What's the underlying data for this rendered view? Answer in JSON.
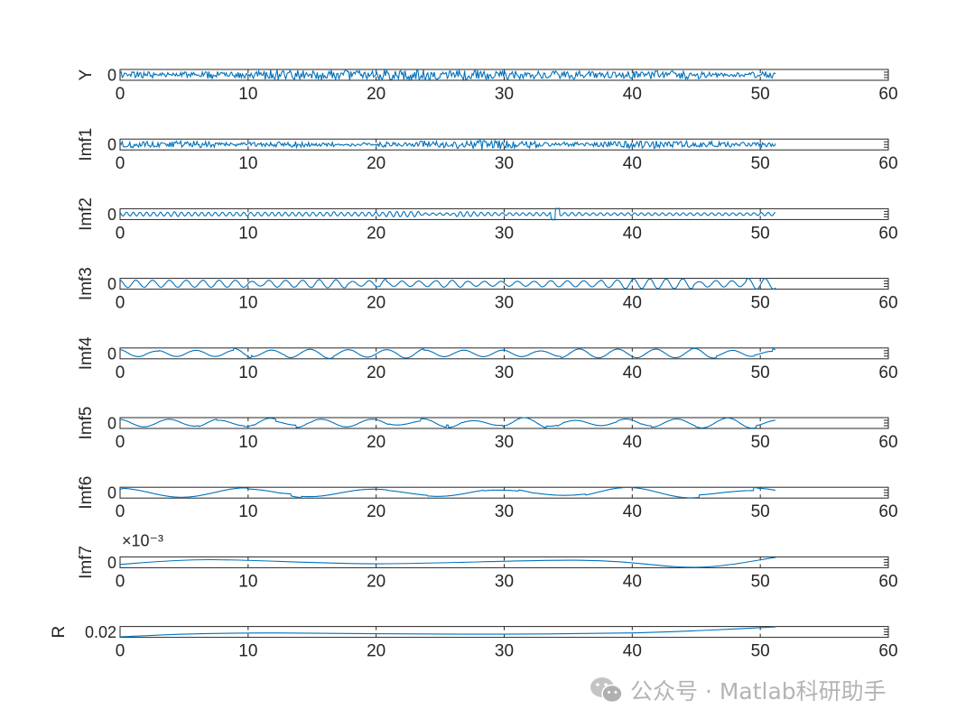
{
  "chart_data": [
    {
      "type": "line",
      "ylabel": "Y",
      "yticks": [
        "0"
      ],
      "xlim": [
        0,
        60
      ],
      "xticks": [
        0,
        10,
        20,
        30,
        40,
        50,
        60
      ],
      "color": "#0072bd",
      "series": [
        {
          "x": [
            0,
            51.2
          ],
          "y": "dense oscillation about 0, amplitude approx. equal to axis half-height"
        }
      ]
    },
    {
      "type": "line",
      "ylabel": "Imf1",
      "yticks": [
        "0"
      ],
      "xlim": [
        0,
        60
      ],
      "xticks": [
        0,
        10,
        20,
        30,
        40,
        50,
        60
      ],
      "color": "#0072bd",
      "series": [
        {
          "x": [
            0,
            51.2
          ],
          "y": "dense high-frequency oscillation about 0, very similar to Y"
        }
      ]
    },
    {
      "type": "line",
      "ylabel": "Imf2",
      "yticks": [
        "0"
      ],
      "xlim": [
        0,
        60
      ],
      "xticks": [
        0,
        10,
        20,
        30,
        40,
        50,
        60
      ],
      "color": "#0072bd",
      "series": [
        {
          "x": [
            0,
            51.2
          ],
          "y": "high-frequency oscillation about 0, spike near x=34"
        }
      ]
    },
    {
      "type": "line",
      "ylabel": "Imf3",
      "yticks": [
        "0"
      ],
      "xlim": [
        0,
        60
      ],
      "xticks": [
        0,
        10,
        20,
        30,
        40,
        50,
        60
      ],
      "color": "#0072bd",
      "series": [
        {
          "x": [
            0,
            51.2
          ],
          "y": "oscillation about 0, period approx. 1.3"
        }
      ]
    },
    {
      "type": "line",
      "ylabel": "Imf4",
      "yticks": [
        "0"
      ],
      "xlim": [
        0,
        60
      ],
      "xticks": [
        0,
        10,
        20,
        30,
        40,
        50,
        60
      ],
      "color": "#0072bd",
      "series": [
        {
          "x": [
            0,
            51.2
          ],
          "y": "oscillation about 0, period approx. 3"
        }
      ]
    },
    {
      "type": "line",
      "ylabel": "Imf5",
      "yticks": [
        "0"
      ],
      "xlim": [
        0,
        60
      ],
      "xticks": [
        0,
        10,
        20,
        30,
        40,
        50,
        60
      ],
      "color": "#0072bd",
      "series": [
        {
          "x": [
            0,
            51.2
          ],
          "y": "oscillation about 0, period approx. 4"
        }
      ]
    },
    {
      "type": "line",
      "ylabel": "Imf6",
      "yticks": [
        "0"
      ],
      "xlim": [
        0,
        60
      ],
      "xticks": [
        0,
        10,
        20,
        30,
        40,
        50,
        60
      ],
      "color": "#0072bd",
      "series": [
        {
          "x": [
            0,
            51.2
          ],
          "y": "slow oscillation about 0, period approx. 10"
        }
      ]
    },
    {
      "type": "line",
      "ylabel": "Imf7",
      "yticks": [
        "0"
      ],
      "exponent": "×10⁻³",
      "xlim": [
        0,
        60
      ],
      "xticks": [
        0,
        10,
        20,
        30,
        40,
        50,
        60
      ],
      "color": "#0072bd",
      "series": [
        {
          "x": [
            0,
            7,
            20,
            36,
            45,
            51.2
          ],
          "y": [
            -0.3,
            0.5,
            -0.2,
            0.4,
            -0.8,
            0.9
          ]
        }
      ]
    },
    {
      "type": "line",
      "ylabel": "R",
      "yticks": [
        "0.02"
      ],
      "xlim": [
        0,
        60
      ],
      "xticks": [
        0,
        10,
        20,
        30,
        40,
        50,
        60
      ],
      "color": "#0072bd",
      "series": [
        {
          "x": [
            0,
            5,
            12,
            20,
            30,
            40,
            46,
            51.2
          ],
          "y": [
            0.0185,
            0.0192,
            0.0195,
            0.0193,
            0.0192,
            0.0195,
            0.0202,
            0.021
          ]
        }
      ]
    }
  ],
  "watermark": {
    "text": "公众号 · Matlab科研助手",
    "logo_icon": "wechat-icon"
  }
}
